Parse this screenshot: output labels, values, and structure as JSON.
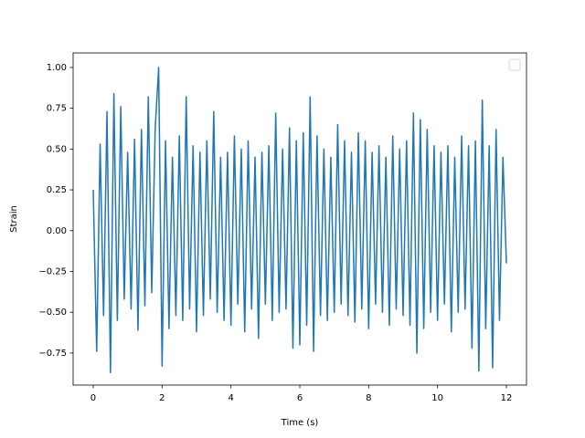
{
  "chart_data": {
    "type": "line",
    "xlabel": "Time (s)",
    "ylabel": "Strain",
    "x": [
      0,
      0.1,
      0.2,
      0.3,
      0.4,
      0.5,
      0.6,
      0.7,
      0.8,
      0.9,
      1,
      1.1,
      1.2,
      1.3,
      1.4,
      1.5,
      1.6,
      1.7,
      1.8,
      1.9,
      2,
      2.1,
      2.2,
      2.3,
      2.4,
      2.5,
      2.6,
      2.7,
      2.8,
      2.9,
      3,
      3.1,
      3.2,
      3.3,
      3.4,
      3.5,
      3.6,
      3.7,
      3.8,
      3.9,
      4,
      4.1,
      4.2,
      4.3,
      4.4,
      4.5,
      4.6,
      4.7,
      4.8,
      4.9,
      5,
      5.1,
      5.2,
      5.3,
      5.4,
      5.5,
      5.6,
      5.7,
      5.8,
      5.9,
      6,
      6.1,
      6.2,
      6.3,
      6.4,
      6.5,
      6.6,
      6.7,
      6.8,
      6.9,
      7,
      7.1,
      7.2,
      7.3,
      7.4,
      7.5,
      7.6,
      7.7,
      7.8,
      7.9,
      8,
      8.1,
      8.2,
      8.3,
      8.4,
      8.5,
      8.6,
      8.7,
      8.8,
      8.9,
      9,
      9.1,
      9.2,
      9.3,
      9.4,
      9.5,
      9.6,
      9.7,
      9.8,
      9.9,
      10,
      10.1,
      10.2,
      10.3,
      10.4,
      10.5,
      10.6,
      10.7,
      10.8,
      10.9,
      11,
      11.1,
      11.2,
      11.3,
      11.4,
      11.5,
      11.6,
      11.7,
      11.8,
      11.9,
      12
    ],
    "series": [
      {
        "color": "#1f77b4",
        "values": [
          0.25,
          -0.74,
          0.53,
          -0.52,
          0.73,
          -0.87,
          0.84,
          -0.55,
          0.76,
          -0.42,
          0.48,
          -0.48,
          0.56,
          -0.61,
          0.62,
          -0.46,
          0.82,
          -0.38,
          0.63,
          1.0,
          -0.83,
          0.55,
          -0.6,
          0.45,
          -0.52,
          0.58,
          -0.55,
          0.82,
          -0.48,
          0.52,
          -0.62,
          0.48,
          -0.52,
          0.55,
          -0.42,
          0.73,
          -0.5,
          0.45,
          -0.55,
          0.48,
          -0.58,
          0.58,
          -0.45,
          0.5,
          -0.62,
          0.55,
          -0.48,
          0.45,
          -0.66,
          0.48,
          -0.45,
          0.52,
          -0.55,
          0.72,
          -0.5,
          0.5,
          -0.48,
          0.63,
          -0.72,
          0.55,
          -0.7,
          0.6,
          -0.58,
          0.82,
          -0.74,
          0.58,
          -0.52,
          0.5,
          -0.55,
          0.45,
          -0.5,
          0.65,
          -0.45,
          0.55,
          -0.52,
          0.48,
          -0.56,
          0.6,
          -0.48,
          0.55,
          -0.6,
          0.48,
          -0.45,
          0.52,
          -0.5,
          0.45,
          -0.58,
          0.58,
          -0.48,
          0.5,
          -0.52,
          0.55,
          -0.58,
          0.72,
          -0.75,
          0.68,
          -0.6,
          0.62,
          -0.5,
          0.52,
          -0.55,
          0.48,
          -0.45,
          0.52,
          -0.62,
          0.45,
          -0.5,
          0.58,
          -0.48,
          0.52,
          -0.72,
          0.55,
          -0.86,
          0.8,
          -0.6,
          0.52,
          -0.84,
          0.62,
          -0.55,
          0.45,
          -0.2
        ]
      }
    ],
    "xlim": [
      -0.584,
      12.584
    ],
    "ylim": [
      -0.946,
      1.089
    ],
    "xticks": [
      0,
      2,
      4,
      6,
      8,
      10,
      12
    ],
    "yticks": [
      {
        "value": -0.75,
        "label": "−0.75"
      },
      {
        "value": -0.5,
        "label": "−0.50"
      },
      {
        "value": -0.25,
        "label": "−0.25"
      },
      {
        "value": 0,
        "label": "0.00"
      },
      0.25,
      {
        "value": 0.5,
        "label": "0.50"
      },
      0.75,
      {
        "value": 1,
        "label": "1.00"
      }
    ],
    "legend": "upper right"
  }
}
